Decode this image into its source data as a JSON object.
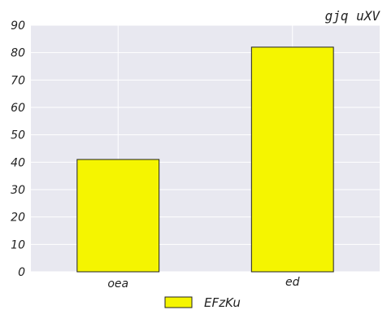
{
  "chart_data": {
    "type": "bar",
    "title": "gjq uXV",
    "categories": [
      "oea",
      "ed"
    ],
    "series": [
      {
        "name": "EFzKu",
        "values": [
          41,
          82
        ],
        "color": "#f5f500"
      }
    ],
    "ylim": [
      0,
      90
    ],
    "yticks": [
      0,
      10,
      20,
      30,
      40,
      50,
      60,
      70,
      80,
      90
    ],
    "grid": true,
    "legend_position": "bottom-center",
    "background": "#e8e8f0"
  }
}
